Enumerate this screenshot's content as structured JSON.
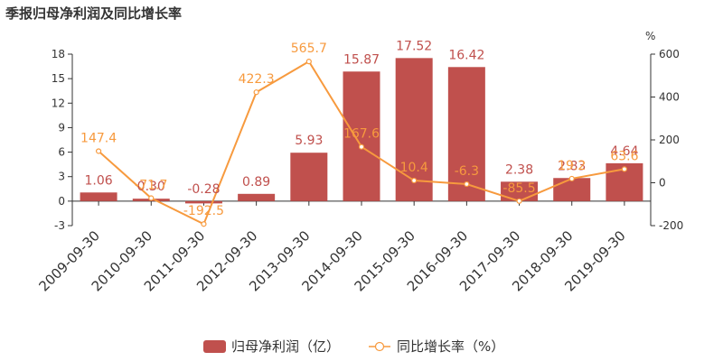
{
  "chart_data": {
    "type": "bar+line",
    "title": "季报归母净利润及同比增长率",
    "categories": [
      "2009-09-30",
      "2010-09-30",
      "2011-09-30",
      "2012-09-30",
      "2013-09-30",
      "2014-09-30",
      "2015-09-30",
      "2016-09-30",
      "2017-09-30",
      "2018-09-30",
      "2019-09-30"
    ],
    "series": [
      {
        "name": "归母净利润（亿）",
        "type": "bar",
        "axis": "left",
        "values": [
          1.06,
          0.3,
          -0.28,
          0.89,
          5.93,
          15.87,
          17.52,
          16.42,
          2.38,
          2.83,
          4.64
        ],
        "labels": [
          "1.06",
          "0.30",
          "-0.28",
          "0.89",
          "5.93",
          "15.87",
          "17.52",
          "16.42",
          "2.38",
          "2.83",
          "4.64"
        ],
        "color": "#c0504d"
      },
      {
        "name": "同比增长率（%）",
        "type": "line",
        "axis": "right",
        "values": [
          147.4,
          -71.7,
          -192.5,
          422.3,
          565.7,
          167.6,
          10.4,
          -6.3,
          -85.5,
          19.2,
          63.6
        ],
        "labels": [
          "147.4",
          "-71.7",
          "-192.5",
          "422.3",
          "565.7",
          "167.6",
          "10.4",
          "-6.3",
          "-85.5",
          "19.2",
          "63.6"
        ],
        "color": "#f79a3e"
      }
    ],
    "left_axis": {
      "min": -3,
      "max": 18,
      "ticks": [
        -3,
        0,
        3,
        6,
        9,
        12,
        15,
        18
      ]
    },
    "right_axis": {
      "unit": "%",
      "min": -200,
      "max": 600,
      "ticks": [
        -200,
        0,
        200,
        400,
        600
      ]
    },
    "legend": {
      "position": "bottom-center"
    },
    "grid": false
  }
}
